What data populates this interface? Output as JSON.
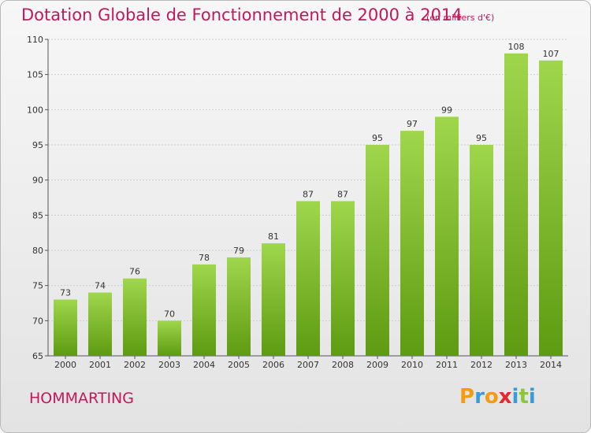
{
  "header": {
    "title": "Dotation Globale de Fonctionnement de 2000 à 2014",
    "subtitle": "(en milliers d'€)"
  },
  "footer": {
    "commune": "HOMMARTING",
    "logo": {
      "text": "Proxiti",
      "letters": [
        {
          "char": "P",
          "color": "#f39c12"
        },
        {
          "char": "r",
          "color": "#3a9bd8"
        },
        {
          "char": "o",
          "color": "#f39c12"
        },
        {
          "char": "x",
          "color": "#e8262b"
        },
        {
          "char": "i",
          "color": "#3a9bd8"
        },
        {
          "char": "t",
          "color": "#8cc63f"
        },
        {
          "char": "i",
          "color": "#3a9bd8"
        }
      ]
    }
  },
  "colors": {
    "title": "#c2185b",
    "bar_top": "#9fd64c",
    "bar_bottom": "#5e9b12",
    "grid": "#cfcfcf"
  },
  "chart_data": {
    "type": "bar",
    "categories": [
      "2000",
      "2001",
      "2002",
      "2003",
      "2004",
      "2005",
      "2006",
      "2007",
      "2008",
      "2009",
      "2010",
      "2011",
      "2012",
      "2013",
      "2014"
    ],
    "values": [
      73,
      74,
      76,
      70,
      78,
      79,
      81,
      87,
      87,
      95,
      97,
      99,
      95,
      108,
      107
    ],
    "title": "Dotation Globale de Fonctionnement de 2000 à 2014",
    "subtitle": "(en milliers d'€)",
    "xlabel": "",
    "ylabel": "",
    "ylim": [
      65,
      110
    ],
    "yticks": [
      65,
      70,
      75,
      80,
      85,
      90,
      95,
      100,
      105,
      110
    ],
    "grid": true,
    "data_labels": true
  }
}
